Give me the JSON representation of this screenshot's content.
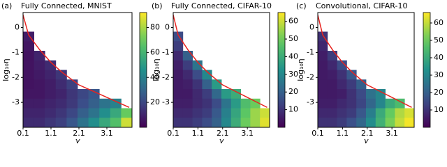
{
  "chart_data": [
    {
      "type": "heatmap",
      "panel_label": "(a)",
      "title": "Fully Connected, MNIST",
      "xlabel": "γ",
      "ylabel": "log₁₀η",
      "xlim": [
        0.1,
        4.0
      ],
      "ylim": [
        -4.0,
        0.6
      ],
      "xticks": [
        0.1,
        1.1,
        2.1,
        3.1
      ],
      "yticks": [
        0,
        -1,
        -2,
        -3
      ],
      "colormap": "viridis",
      "clim": [
        0,
        92
      ],
      "cbar_ticks": [
        20,
        40,
        60,
        80
      ],
      "values": [
        [
          null,
          null,
          null,
          null,
          null,
          null,
          null,
          null,
          null,
          null
        ],
        [
          null,
          null,
          null,
          null,
          null,
          null,
          null,
          null,
          null,
          null
        ],
        [
          8,
          null,
          null,
          null,
          null,
          null,
          null,
          null,
          null,
          null
        ],
        [
          6,
          null,
          null,
          null,
          null,
          null,
          null,
          null,
          null,
          null
        ],
        [
          5,
          10,
          null,
          null,
          null,
          null,
          null,
          null,
          null,
          null
        ],
        [
          5,
          8,
          12,
          null,
          null,
          null,
          null,
          null,
          null,
          null
        ],
        [
          5,
          7,
          10,
          15,
          null,
          null,
          null,
          null,
          null,
          null
        ],
        [
          5,
          6,
          8,
          12,
          18,
          null,
          null,
          null,
          null,
          null
        ],
        [
          6,
          6,
          8,
          10,
          15,
          20,
          25,
          null,
          null,
          null
        ],
        [
          8,
          8,
          10,
          12,
          16,
          22,
          28,
          35,
          40,
          null
        ],
        [
          10,
          10,
          12,
          15,
          20,
          28,
          35,
          45,
          55,
          70
        ],
        [
          12,
          12,
          15,
          18,
          25,
          35,
          45,
          55,
          65,
          85
        ]
      ],
      "curve": {
        "color": "#e8231f",
        "x": [
          0.1,
          0.3,
          0.7,
          1.1,
          1.5,
          2.1,
          2.6,
          3.1,
          3.5,
          3.9
        ],
        "y": [
          0.5,
          -0.3,
          -0.9,
          -1.4,
          -1.8,
          -2.3,
          -2.55,
          -2.8,
          -3.0,
          -3.2
        ]
      }
    },
    {
      "type": "heatmap",
      "panel_label": "(b)",
      "title": "Fully Connected, CIFAR-10",
      "xlabel": "γ",
      "ylabel": "log₁₀η",
      "xlim": [
        0.1,
        4.0
      ],
      "ylim": [
        -4.0,
        0.6
      ],
      "xticks": [
        0.1,
        1.1,
        2.1,
        3.1
      ],
      "yticks": [
        0,
        -1,
        -2,
        -3
      ],
      "colormap": "viridis",
      "clim": [
        0,
        65
      ],
      "cbar_ticks": [
        10,
        20,
        30,
        40,
        50,
        60
      ],
      "values": [
        [
          null,
          null,
          null,
          null,
          null,
          null,
          null,
          null,
          null,
          null
        ],
        [
          null,
          null,
          null,
          null,
          null,
          null,
          null,
          null,
          null,
          null
        ],
        [
          15,
          null,
          null,
          null,
          null,
          null,
          null,
          null,
          null,
          null
        ],
        [
          12,
          null,
          null,
          null,
          null,
          null,
          null,
          null,
          null,
          null
        ],
        [
          8,
          20,
          null,
          null,
          null,
          null,
          null,
          null,
          null,
          null
        ],
        [
          6,
          12,
          25,
          null,
          null,
          null,
          null,
          null,
          null,
          null
        ],
        [
          5,
          8,
          15,
          30,
          null,
          null,
          null,
          null,
          null,
          null
        ],
        [
          5,
          6,
          10,
          20,
          35,
          null,
          null,
          null,
          null,
          null
        ],
        [
          5,
          5,
          8,
          12,
          22,
          35,
          40,
          null,
          null,
          null
        ],
        [
          6,
          6,
          8,
          10,
          15,
          25,
          35,
          45,
          50,
          null
        ],
        [
          8,
          8,
          10,
          12,
          18,
          28,
          38,
          48,
          55,
          60
        ],
        [
          10,
          10,
          12,
          15,
          20,
          30,
          40,
          50,
          55,
          62
        ]
      ],
      "curve": {
        "color": "#e8231f",
        "x": [
          0.1,
          0.3,
          0.7,
          1.1,
          1.5,
          2.1,
          2.6,
          3.1,
          3.5,
          3.9
        ],
        "y": [
          0.5,
          -0.3,
          -0.9,
          -1.4,
          -1.8,
          -2.3,
          -2.55,
          -2.8,
          -3.0,
          -3.2
        ]
      }
    },
    {
      "type": "heatmap",
      "panel_label": "(c)",
      "title": "Convolutional, CIFAR-10",
      "xlabel": "γ",
      "ylabel": "log₁₀η",
      "xlim": [
        0.1,
        4.0
      ],
      "ylim": [
        -4.0,
        0.6
      ],
      "xticks": [
        0.1,
        1.1,
        2.1,
        3.1
      ],
      "yticks": [
        0,
        -1,
        -2,
        -3
      ],
      "colormap": "viridis",
      "clim": [
        0,
        66
      ],
      "cbar_ticks": [
        10,
        20,
        30,
        40,
        50,
        60
      ],
      "values": [
        [
          null,
          null,
          null,
          null,
          null,
          null,
          null,
          null,
          null,
          null
        ],
        [
          null,
          null,
          null,
          null,
          null,
          null,
          null,
          null,
          null,
          null
        ],
        [
          10,
          null,
          null,
          null,
          null,
          null,
          null,
          null,
          null,
          null
        ],
        [
          8,
          null,
          null,
          null,
          null,
          null,
          null,
          null,
          null,
          null
        ],
        [
          6,
          12,
          null,
          null,
          null,
          null,
          null,
          null,
          null,
          null
        ],
        [
          5,
          8,
          15,
          null,
          null,
          null,
          null,
          null,
          null,
          null
        ],
        [
          5,
          6,
          10,
          18,
          null,
          null,
          null,
          null,
          null,
          null
        ],
        [
          5,
          5,
          8,
          12,
          20,
          null,
          null,
          null,
          null,
          null
        ],
        [
          5,
          5,
          6,
          10,
          15,
          25,
          30,
          null,
          null,
          null
        ],
        [
          6,
          6,
          8,
          10,
          14,
          22,
          30,
          40,
          45,
          null
        ],
        [
          8,
          8,
          10,
          12,
          18,
          28,
          40,
          50,
          58,
          62
        ],
        [
          10,
          10,
          12,
          16,
          22,
          32,
          42,
          52,
          60,
          65
        ]
      ],
      "curve": {
        "color": "#e8231f",
        "x": [
          0.1,
          0.3,
          0.7,
          1.1,
          1.5,
          2.1,
          2.6,
          3.1,
          3.5,
          3.9
        ],
        "y": [
          0.5,
          -0.3,
          -0.9,
          -1.4,
          -1.8,
          -2.3,
          -2.55,
          -2.8,
          -3.0,
          -3.2
        ]
      }
    }
  ]
}
